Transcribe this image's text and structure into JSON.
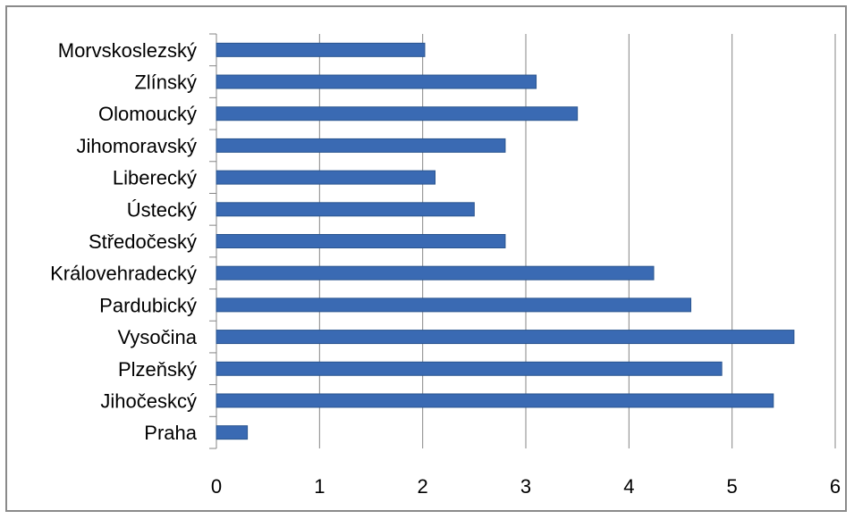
{
  "chart_data": {
    "type": "bar",
    "orientation": "horizontal",
    "categories": [
      "Morvskoslezský",
      "Zlínský",
      "Olomoucký",
      "Jihomoravský",
      "Liberecký",
      "Ústecký",
      "Středočeský",
      "Královehradecký",
      "Pardubický",
      "Vysočina",
      "Plzeňský",
      "Jihočeskcý",
      "Praha"
    ],
    "values": [
      2.02,
      3.1,
      3.5,
      2.8,
      2.12,
      2.5,
      2.8,
      4.24,
      4.6,
      5.6,
      4.9,
      5.4,
      0.3
    ],
    "xlim": [
      0,
      6
    ],
    "xticks": [
      "0",
      "1",
      "2",
      "3",
      "4",
      "5",
      "6"
    ],
    "title": "",
    "xlabel": "",
    "ylabel": "",
    "grid": "vertical",
    "legend": "none",
    "bar_color": "#3a6ab3",
    "bar_edge_color": "#2a558f"
  }
}
